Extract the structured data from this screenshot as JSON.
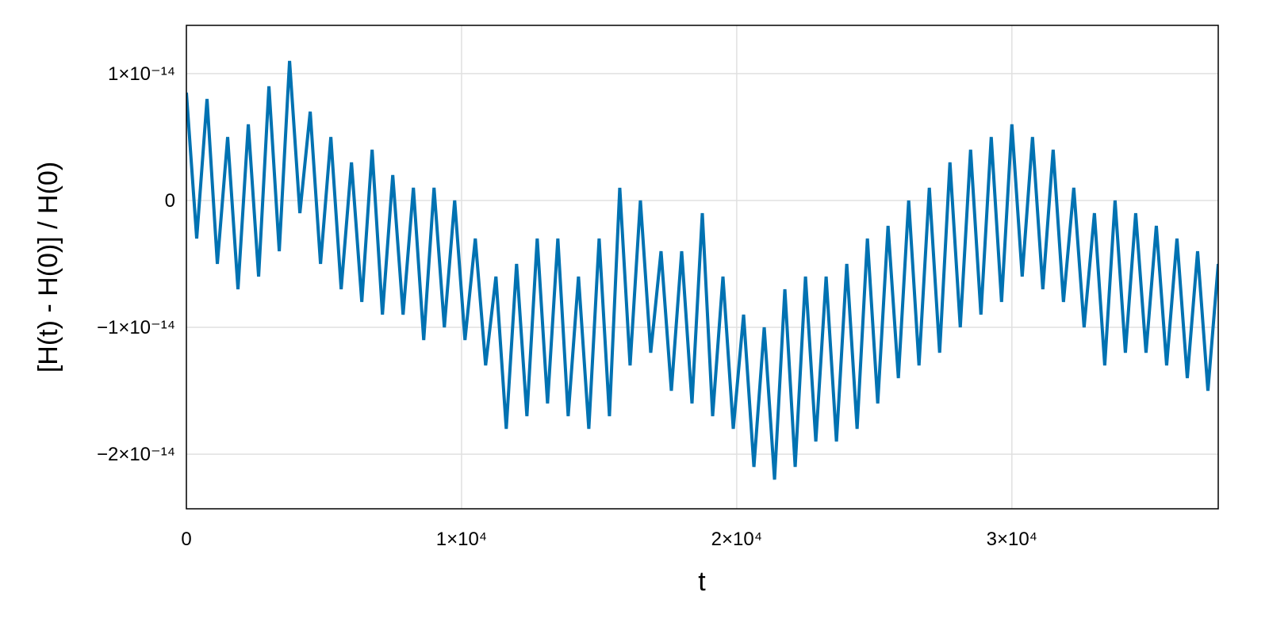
{
  "chart_data": {
    "type": "line",
    "x_label": "t",
    "y_label": "[H(t) - H(0)] / H(0)",
    "xlim": [
      0,
      37500
    ],
    "ylim": [
      -2.43e-14,
      1.38e-14
    ],
    "xticks": [
      0,
      {
        "value": 10000,
        "label": "1×10⁴"
      },
      {
        "value": 20000,
        "label": "2×10⁴"
      },
      {
        "value": 30000,
        "label": "3×10⁴"
      }
    ],
    "yticks": [
      {
        "value": -2e-14,
        "label": "−2×10⁻¹⁴"
      },
      {
        "value": -1e-14,
        "label": "−1×10⁻¹⁴"
      },
      0,
      {
        "value": 1e-14,
        "label": "1×10⁻¹⁴"
      }
    ],
    "grid": true,
    "x": [
      0,
      375,
      750,
      1125,
      1500,
      1875,
      2250,
      2625,
      3000,
      3375,
      3750,
      4125,
      4500,
      4875,
      5250,
      5625,
      6000,
      6375,
      6750,
      7125,
      7500,
      7875,
      8250,
      8625,
      9000,
      9375,
      9750,
      10125,
      10500,
      10875,
      11250,
      11625,
      12000,
      12375,
      12750,
      13125,
      13500,
      13875,
      14250,
      14625,
      15000,
      15375,
      15750,
      16125,
      16500,
      16875,
      17250,
      17625,
      18000,
      18375,
      18750,
      19125,
      19500,
      19875,
      20250,
      20625,
      21000,
      21375,
      21750,
      22125,
      22500,
      22875,
      23250,
      23625,
      24000,
      24375,
      24750,
      25125,
      25500,
      25875,
      26250,
      26625,
      27000,
      27375,
      27750,
      28125,
      28500,
      28875,
      29250,
      29625,
      30000,
      30375,
      30750,
      31125,
      31500,
      31875,
      32250,
      32625,
      33000,
      33375,
      33750,
      34125,
      34500,
      34875,
      35250,
      35625,
      36000,
      36375,
      36750,
      37125,
      37500
    ],
    "series": [
      {
        "color": "#0072b2",
        "values": [
          8.5e-15,
          -3e-15,
          8e-15,
          -5e-15,
          5e-15,
          -7e-15,
          6e-15,
          -6e-15,
          9e-15,
          -4e-15,
          1.1e-14,
          -1e-15,
          7e-15,
          -5e-15,
          5e-15,
          -7e-15,
          3e-15,
          -8e-15,
          4e-15,
          -9e-15,
          2e-15,
          -9e-15,
          1e-15,
          -1.1e-14,
          1e-15,
          -1e-14,
          0,
          -1.1e-14,
          -3e-15,
          -1.3e-14,
          -6e-15,
          -1.8e-14,
          -5e-15,
          -1.7e-14,
          -3e-15,
          -1.6e-14,
          -3e-15,
          -1.7e-14,
          -6e-15,
          -1.8e-14,
          -3e-15,
          -1.7e-14,
          1e-15,
          -1.3e-14,
          0,
          -1.2e-14,
          -4e-15,
          -1.5e-14,
          -4e-15,
          -1.6e-14,
          -1e-15,
          -1.7e-14,
          -6e-15,
          -1.8e-14,
          -9e-15,
          -2.1e-14,
          -1e-14,
          -2.2e-14,
          -7e-15,
          -2.1e-14,
          -6e-15,
          -1.9e-14,
          -6e-15,
          -1.9e-14,
          -5e-15,
          -1.8e-14,
          -3e-15,
          -1.6e-14,
          -2e-15,
          -1.4e-14,
          0,
          -1.3e-14,
          1e-15,
          -1.2e-14,
          3e-15,
          -1e-14,
          4e-15,
          -9e-15,
          5e-15,
          -8e-15,
          6e-15,
          -6e-15,
          5e-15,
          -7e-15,
          4e-15,
          -8e-15,
          1e-15,
          -1e-14,
          -1e-15,
          -1.3e-14,
          0,
          -1.2e-14,
          -1e-15,
          -1.2e-14,
          -2e-15,
          -1.3e-14,
          -3e-15,
          -1.4e-14,
          -4e-15,
          -1.5e-14,
          -5e-15
        ]
      }
    ]
  }
}
